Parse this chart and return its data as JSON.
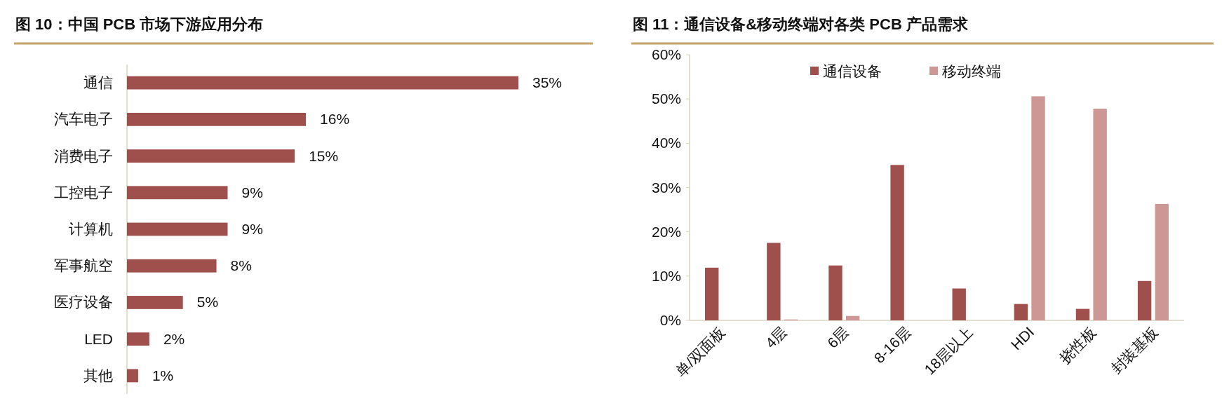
{
  "chart_data": [
    {
      "type": "bar",
      "orientation": "horizontal",
      "title": "图 10：中国 PCB 市场下游应用分布",
      "categories": [
        "通信",
        "汽车电子",
        "消费电子",
        "工控电子",
        "计算机",
        "军事航空",
        "医疗设备",
        "LED",
        "其他"
      ],
      "values": [
        35,
        16,
        15,
        9,
        9,
        8,
        5,
        2,
        1
      ],
      "value_labels": [
        "35%",
        "16%",
        "15%",
        "9%",
        "9%",
        "8%",
        "5%",
        "2%",
        "1%"
      ],
      "color": "#a0504c"
    },
    {
      "type": "bar",
      "title": "图 11：通信设备&移动终端对各类 PCB 产品需求",
      "categories": [
        "单/双面板",
        "4层",
        "6层",
        "8-16层",
        "18层以上",
        "HDI",
        "挠性板",
        "封装基板"
      ],
      "series": [
        {
          "name": "通信设备",
          "color": "#a0504c",
          "values": [
            11.9,
            17.5,
            12.4,
            35.1,
            7.2,
            3.7,
            2.6,
            8.9
          ]
        },
        {
          "name": "移动终端",
          "color": "#cc9794",
          "values": [
            0,
            0.2,
            1.0,
            0,
            0,
            50.6,
            47.8,
            26.3
          ]
        }
      ],
      "ylim": [
        0,
        60
      ],
      "yticks": [
        {
          "value": 0,
          "label": "0%"
        },
        {
          "value": 10,
          "label": "10%"
        },
        {
          "value": 20,
          "label": "20%"
        },
        {
          "value": 30,
          "label": "30%"
        },
        {
          "value": 40,
          "label": "40%"
        },
        {
          "value": 50,
          "label": "50%"
        },
        {
          "value": 60,
          "label": "60%"
        }
      ],
      "grid": false,
      "legend": "top"
    }
  ]
}
